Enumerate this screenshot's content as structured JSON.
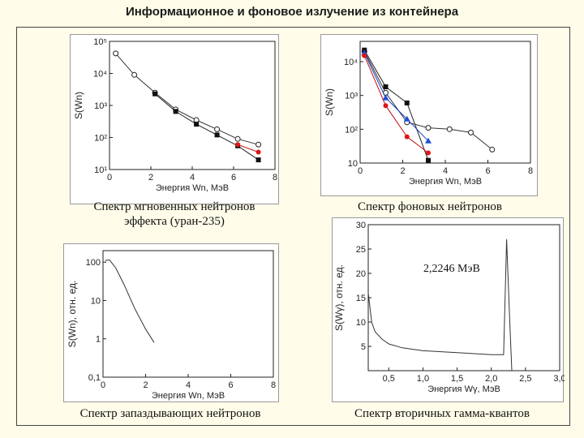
{
  "title": "Информационное и фоновое излучение из контейнера",
  "charts": [
    {
      "id": "prompt",
      "caption_lines": [
        "Спектр мгновенных нейтронов",
        "эффекта (уран-235)"
      ],
      "ylabel": "S(Wn)",
      "xlabel": "Энергия Wn, МэВ",
      "xticks": [
        "0",
        "2",
        "4",
        "6",
        "8"
      ],
      "yticks": [
        "10¹",
        "10²",
        "10³",
        "10⁴",
        "10⁵"
      ]
    },
    {
      "id": "background",
      "caption_lines": [
        "Спектр фоновых нейтронов"
      ],
      "ylabel": "S(Wn)",
      "xlabel": "Энергия Wn, МэВ",
      "xticks": [
        "0",
        "2",
        "4",
        "6",
        "8"
      ],
      "yticks": [
        "10",
        "10²",
        "10³",
        "10⁴"
      ]
    },
    {
      "id": "delayed",
      "caption_lines": [
        "Спектр запаздывающих нейтронов"
      ],
      "ylabel": "S(Wn), отн. ед.",
      "xlabel": "Энергия Wn, МэВ",
      "xticks": [
        "0",
        "2",
        "4",
        "6",
        "8"
      ],
      "yticks": [
        "0,1",
        "1",
        "10",
        "100"
      ]
    },
    {
      "id": "gamma",
      "caption_lines": [
        "Спектр вторичных гамма-квантов"
      ],
      "ylabel": "S(Wγ), отн. ед.",
      "xlabel": "Энергия Wγ, МэВ",
      "xticks": [
        "0,5",
        "1,0",
        "1,5",
        "2,0",
        "2,5",
        "3,0"
      ],
      "yticks": [
        "5",
        "10",
        "15",
        "20",
        "25",
        "30"
      ],
      "annotation": "2,2246 МэВ"
    }
  ],
  "chart_data": [
    {
      "type": "line",
      "xlim": [
        0,
        8
      ],
      "ylim_log10": [
        1,
        5
      ],
      "yscale": "log",
      "series": [
        {
          "x": [
            0.3,
            1.2,
            2.2,
            3.2,
            4.2,
            5.2,
            6.2,
            7.2
          ],
          "y": [
            42000,
            9000,
            2500,
            750,
            350,
            180,
            90,
            60
          ],
          "marker": "open-circle"
        },
        {
          "x": [
            2.2,
            3.2,
            4.2,
            5.2,
            6.2,
            7.2
          ],
          "y": [
            2300,
            650,
            260,
            120,
            55,
            20
          ],
          "marker": "filled-square"
        },
        {
          "x": [
            6.2,
            7.2
          ],
          "y": [
            60,
            35
          ],
          "marker": "filled-circle-red"
        }
      ]
    },
    {
      "type": "line",
      "xlim": [
        0,
        8
      ],
      "ylim_log10": [
        1,
        4.6
      ],
      "yscale": "log",
      "series": [
        {
          "x": [
            0.2,
            1.2,
            2.2,
            3.2,
            4.2,
            5.2,
            6.2
          ],
          "y": [
            20000,
            1200,
            160,
            110,
            100,
            80,
            25
          ],
          "marker": "open-circle"
        },
        {
          "x": [
            0.2,
            1.2,
            2.2,
            3.2
          ],
          "y": [
            22000,
            1800,
            600,
            12
          ],
          "marker": "filled-square"
        },
        {
          "x": [
            0.2,
            1.2,
            2.2,
            3.2
          ],
          "y": [
            18000,
            850,
            200,
            45
          ],
          "marker": "filled-triangle-blue"
        },
        {
          "x": [
            0.2,
            1.2,
            2.2,
            3.2
          ],
          "y": [
            15000,
            500,
            60,
            20
          ],
          "marker": "filled-circle-red"
        }
      ]
    },
    {
      "type": "line",
      "xlim": [
        0,
        8
      ],
      "ylim_log10": [
        -1,
        2.3
      ],
      "yscale": "log",
      "series": [
        {
          "x": [
            0.1,
            0.3,
            0.6,
            1.0,
            1.5,
            2.0,
            2.4
          ],
          "y": [
            110,
            115,
            70,
            25,
            6,
            1.8,
            0.8
          ]
        }
      ]
    },
    {
      "type": "line",
      "xlim": [
        0.2,
        3.0
      ],
      "ylim": [
        0,
        30
      ],
      "series": [
        {
          "x": [
            0.2,
            0.25,
            0.3,
            0.4,
            0.5,
            0.7,
            1.0,
            1.5,
            2.0,
            2.18,
            2.2246,
            2.27,
            2.3
          ],
          "y": [
            16,
            10,
            8,
            6.5,
            5.5,
            4.7,
            4.1,
            3.7,
            3.3,
            3.3,
            27,
            10,
            0
          ]
        }
      ]
    }
  ]
}
